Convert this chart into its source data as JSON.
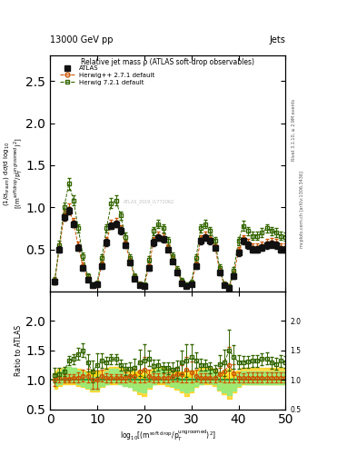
{
  "title": "Relative jet mass ρ (ATLAS soft-drop observables)",
  "header_left": "13000 GeV pp",
  "header_right": "Jets",
  "right_label_top": "Rivet 3.1.10, ≥ 2.9M events",
  "right_label_bottom": "mcplots.cern.ch [arXiv:1306.3436]",
  "watermark": "ATLAS_2019_I1772062",
  "ylabel_ratio": "Ratio to ATLAS",
  "xlim": [
    0,
    50
  ],
  "ylim_main": [
    0,
    2.8
  ],
  "ylim_ratio": [
    0.5,
    2.5
  ],
  "xticks": [
    0,
    10,
    20,
    30,
    40,
    50
  ],
  "yticks_main": [
    0.5,
    1.0,
    1.5,
    2.0,
    2.5
  ],
  "yticks_ratio": [
    0.5,
    1.0,
    1.5,
    2.0
  ],
  "atlas_color": "#111111",
  "herwig_pp_color": "#cc5500",
  "herwig7_color": "#336600",
  "x": [
    1,
    2,
    3,
    4,
    5,
    6,
    7,
    8,
    9,
    10,
    11,
    12,
    13,
    14,
    15,
    16,
    17,
    18,
    19,
    20,
    21,
    22,
    23,
    24,
    25,
    26,
    27,
    28,
    29,
    30,
    31,
    32,
    33,
    34,
    35,
    36,
    37,
    38,
    39,
    40,
    41,
    42,
    43,
    44,
    45,
    46,
    47,
    48,
    49,
    50
  ],
  "atlas_y": [
    0.12,
    0.5,
    0.88,
    0.96,
    0.8,
    0.52,
    0.28,
    0.14,
    0.07,
    0.08,
    0.3,
    0.58,
    0.78,
    0.8,
    0.72,
    0.55,
    0.34,
    0.15,
    0.07,
    0.06,
    0.28,
    0.58,
    0.64,
    0.62,
    0.5,
    0.36,
    0.22,
    0.1,
    0.06,
    0.08,
    0.3,
    0.6,
    0.64,
    0.6,
    0.52,
    0.22,
    0.07,
    0.04,
    0.18,
    0.46,
    0.6,
    0.55,
    0.5,
    0.5,
    0.52,
    0.55,
    0.56,
    0.55,
    0.5,
    0.5
  ],
  "atlas_yerr": [
    0.03,
    0.04,
    0.04,
    0.04,
    0.04,
    0.04,
    0.03,
    0.02,
    0.02,
    0.02,
    0.03,
    0.04,
    0.04,
    0.04,
    0.04,
    0.03,
    0.03,
    0.02,
    0.02,
    0.02,
    0.03,
    0.04,
    0.04,
    0.04,
    0.03,
    0.03,
    0.03,
    0.02,
    0.02,
    0.02,
    0.03,
    0.04,
    0.04,
    0.04,
    0.03,
    0.03,
    0.02,
    0.02,
    0.03,
    0.04,
    0.04,
    0.04,
    0.04,
    0.04,
    0.04,
    0.04,
    0.04,
    0.04,
    0.04,
    0.04
  ],
  "herwig_pp_y": [
    0.12,
    0.52,
    0.9,
    0.98,
    0.82,
    0.54,
    0.3,
    0.15,
    0.07,
    0.08,
    0.32,
    0.6,
    0.8,
    0.82,
    0.74,
    0.57,
    0.36,
    0.16,
    0.08,
    0.07,
    0.3,
    0.6,
    0.66,
    0.64,
    0.52,
    0.38,
    0.24,
    0.11,
    0.07,
    0.09,
    0.32,
    0.62,
    0.66,
    0.62,
    0.54,
    0.24,
    0.08,
    0.05,
    0.2,
    0.48,
    0.62,
    0.57,
    0.52,
    0.52,
    0.54,
    0.57,
    0.58,
    0.57,
    0.52,
    0.52
  ],
  "herwig_pp_yerr": [
    0.04,
    0.05,
    0.06,
    0.06,
    0.05,
    0.05,
    0.04,
    0.03,
    0.03,
    0.03,
    0.04,
    0.05,
    0.05,
    0.05,
    0.05,
    0.04,
    0.04,
    0.03,
    0.03,
    0.03,
    0.04,
    0.05,
    0.05,
    0.05,
    0.04,
    0.04,
    0.04,
    0.03,
    0.03,
    0.03,
    0.04,
    0.05,
    0.05,
    0.05,
    0.04,
    0.04,
    0.03,
    0.03,
    0.04,
    0.05,
    0.05,
    0.05,
    0.05,
    0.05,
    0.05,
    0.05,
    0.05,
    0.05,
    0.05,
    0.05
  ],
  "herwig7_y": [
    0.13,
    0.55,
    1.0,
    1.28,
    1.08,
    0.75,
    0.42,
    0.18,
    0.08,
    0.1,
    0.4,
    0.75,
    1.05,
    1.08,
    0.9,
    0.65,
    0.4,
    0.18,
    0.09,
    0.08,
    0.38,
    0.72,
    0.8,
    0.75,
    0.6,
    0.42,
    0.26,
    0.13,
    0.08,
    0.11,
    0.4,
    0.75,
    0.8,
    0.72,
    0.6,
    0.28,
    0.09,
    0.06,
    0.25,
    0.6,
    0.78,
    0.72,
    0.66,
    0.66,
    0.7,
    0.75,
    0.72,
    0.7,
    0.66,
    0.65
  ],
  "herwig7_yerr": [
    0.04,
    0.05,
    0.06,
    0.07,
    0.06,
    0.05,
    0.04,
    0.03,
    0.03,
    0.03,
    0.04,
    0.05,
    0.06,
    0.06,
    0.05,
    0.05,
    0.04,
    0.03,
    0.03,
    0.03,
    0.04,
    0.05,
    0.05,
    0.05,
    0.05,
    0.04,
    0.04,
    0.03,
    0.03,
    0.03,
    0.04,
    0.05,
    0.05,
    0.05,
    0.05,
    0.04,
    0.03,
    0.03,
    0.04,
    0.05,
    0.06,
    0.05,
    0.05,
    0.05,
    0.05,
    0.05,
    0.05,
    0.05,
    0.05,
    0.05
  ],
  "atlas_band_lo": [
    0.88,
    0.92,
    0.94,
    0.95,
    0.94,
    0.92,
    0.9,
    0.88,
    0.85,
    0.85,
    0.9,
    0.92,
    0.94,
    0.95,
    0.94,
    0.92,
    0.9,
    0.88,
    0.85,
    0.85,
    0.9,
    0.92,
    0.94,
    0.94,
    0.92,
    0.9,
    0.88,
    0.86,
    0.84,
    0.85,
    0.9,
    0.92,
    0.94,
    0.94,
    0.92,
    0.88,
    0.84,
    0.82,
    0.86,
    0.9,
    0.92,
    0.92,
    0.92,
    0.92,
    0.92,
    0.92,
    0.92,
    0.92,
    0.92,
    0.92
  ],
  "atlas_band_hi": [
    1.12,
    1.08,
    1.06,
    1.05,
    1.06,
    1.08,
    1.1,
    1.12,
    1.15,
    1.15,
    1.1,
    1.08,
    1.06,
    1.05,
    1.06,
    1.08,
    1.1,
    1.12,
    1.15,
    1.15,
    1.1,
    1.08,
    1.06,
    1.06,
    1.08,
    1.1,
    1.12,
    1.14,
    1.16,
    1.15,
    1.1,
    1.08,
    1.06,
    1.06,
    1.08,
    1.12,
    1.16,
    1.18,
    1.14,
    1.1,
    1.08,
    1.08,
    1.08,
    1.08,
    1.08,
    1.08,
    1.08,
    1.08,
    1.08,
    1.08
  ],
  "herwig_pp_ratio": [
    1.0,
    1.04,
    1.02,
    1.02,
    1.03,
    1.04,
    1.07,
    1.07,
    1.0,
    1.0,
    1.07,
    1.03,
    1.03,
    1.03,
    1.03,
    1.04,
    1.06,
    1.07,
    1.14,
    1.17,
    1.07,
    1.03,
    1.03,
    1.03,
    1.04,
    1.06,
    1.09,
    1.1,
    1.17,
    1.13,
    1.07,
    1.03,
    1.03,
    1.03,
    1.04,
    1.09,
    1.14,
    1.25,
    1.11,
    1.04,
    1.03,
    1.04,
    1.04,
    1.04,
    1.04,
    1.04,
    1.04,
    1.04,
    1.04,
    1.04
  ],
  "herwig7_ratio": [
    1.08,
    1.1,
    1.14,
    1.33,
    1.35,
    1.44,
    1.5,
    1.29,
    1.14,
    1.25,
    1.33,
    1.29,
    1.35,
    1.35,
    1.25,
    1.18,
    1.18,
    1.2,
    1.29,
    1.33,
    1.36,
    1.24,
    1.25,
    1.21,
    1.2,
    1.17,
    1.18,
    1.3,
    1.33,
    1.38,
    1.33,
    1.25,
    1.25,
    1.2,
    1.15,
    1.27,
    1.29,
    1.5,
    1.39,
    1.3,
    1.3,
    1.31,
    1.32,
    1.32,
    1.35,
    1.36,
    1.29,
    1.27,
    1.32,
    1.3
  ],
  "herwig_pp_ratio_err": [
    0.1,
    0.08,
    0.07,
    0.07,
    0.07,
    0.08,
    0.1,
    0.12,
    0.15,
    0.15,
    0.1,
    0.08,
    0.07,
    0.07,
    0.07,
    0.08,
    0.09,
    0.12,
    0.18,
    0.22,
    0.1,
    0.08,
    0.08,
    0.08,
    0.08,
    0.09,
    0.12,
    0.15,
    0.22,
    0.18,
    0.1,
    0.08,
    0.08,
    0.08,
    0.08,
    0.12,
    0.18,
    0.3,
    0.16,
    0.09,
    0.08,
    0.08,
    0.08,
    0.08,
    0.08,
    0.08,
    0.08,
    0.08,
    0.08,
    0.08
  ],
  "herwig7_ratio_err": [
    0.12,
    0.1,
    0.08,
    0.08,
    0.08,
    0.1,
    0.12,
    0.15,
    0.18,
    0.2,
    0.12,
    0.1,
    0.09,
    0.09,
    0.09,
    0.1,
    0.12,
    0.15,
    0.22,
    0.28,
    0.13,
    0.1,
    0.09,
    0.09,
    0.1,
    0.12,
    0.15,
    0.2,
    0.28,
    0.22,
    0.13,
    0.1,
    0.09,
    0.09,
    0.1,
    0.15,
    0.22,
    0.35,
    0.2,
    0.12,
    0.1,
    0.1,
    0.1,
    0.1,
    0.1,
    0.1,
    0.1,
    0.1,
    0.1,
    0.1
  ],
  "herwig_pp_band_lo": [
    0.85,
    0.9,
    0.92,
    0.93,
    0.92,
    0.9,
    0.88,
    0.85,
    0.8,
    0.8,
    0.88,
    0.92,
    0.93,
    0.93,
    0.92,
    0.9,
    0.88,
    0.82,
    0.75,
    0.72,
    0.85,
    0.92,
    0.93,
    0.93,
    0.9,
    0.88,
    0.84,
    0.78,
    0.72,
    0.78,
    0.88,
    0.92,
    0.93,
    0.92,
    0.9,
    0.82,
    0.75,
    0.68,
    0.78,
    0.88,
    0.92,
    0.92,
    0.92,
    0.92,
    0.92,
    0.92,
    0.92,
    0.92,
    0.92,
    0.92
  ],
  "herwig_pp_band_hi": [
    1.15,
    1.18,
    1.2,
    1.22,
    1.2,
    1.18,
    1.16,
    1.14,
    1.12,
    1.12,
    1.16,
    1.2,
    1.22,
    1.22,
    1.2,
    1.18,
    1.16,
    1.14,
    1.1,
    1.08,
    1.16,
    1.2,
    1.22,
    1.22,
    1.18,
    1.16,
    1.14,
    1.1,
    1.06,
    1.1,
    1.16,
    1.2,
    1.22,
    1.2,
    1.18,
    1.12,
    1.08,
    1.04,
    1.1,
    1.16,
    1.2,
    1.2,
    1.2,
    1.2,
    1.2,
    1.2,
    1.2,
    1.2,
    1.2,
    1.2
  ],
  "herwig7_band_lo": [
    0.9,
    0.93,
    0.96,
    0.98,
    0.96,
    0.93,
    0.9,
    0.87,
    0.84,
    0.84,
    0.9,
    0.93,
    0.96,
    0.96,
    0.93,
    0.9,
    0.88,
    0.84,
    0.8,
    0.78,
    0.88,
    0.93,
    0.96,
    0.95,
    0.92,
    0.89,
    0.86,
    0.82,
    0.78,
    0.82,
    0.9,
    0.93,
    0.95,
    0.94,
    0.92,
    0.84,
    0.78,
    0.74,
    0.82,
    0.9,
    0.94,
    0.93,
    0.93,
    0.93,
    0.93,
    0.93,
    0.93,
    0.93,
    0.93,
    0.93
  ],
  "herwig7_band_hi": [
    1.1,
    1.14,
    1.18,
    1.22,
    1.2,
    1.16,
    1.12,
    1.08,
    1.05,
    1.05,
    1.1,
    1.14,
    1.18,
    1.18,
    1.14,
    1.1,
    1.08,
    1.05,
    1.02,
    1.0,
    1.1,
    1.14,
    1.18,
    1.17,
    1.14,
    1.1,
    1.07,
    1.03,
    1.0,
    1.03,
    1.1,
    1.14,
    1.17,
    1.16,
    1.13,
    1.06,
    1.02,
    0.98,
    1.04,
    1.1,
    1.14,
    1.14,
    1.14,
    1.14,
    1.14,
    1.14,
    1.14,
    1.14,
    1.14,
    1.14
  ]
}
